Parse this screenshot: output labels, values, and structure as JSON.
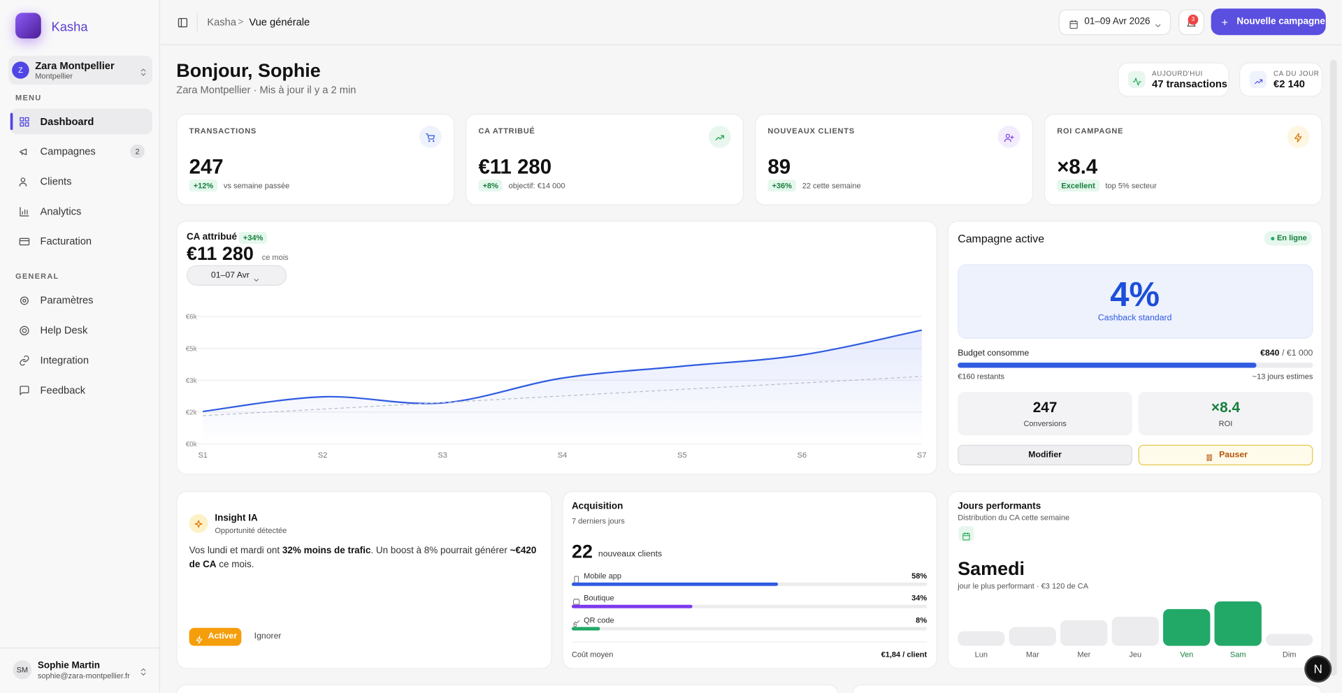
{
  "sidebar": {
    "brand": "Kasha",
    "workspace": {
      "avatar": "Z",
      "name": "Zara Montpellier",
      "city": "Montpellier"
    },
    "menu_title": "MENU",
    "menu": [
      {
        "label": "Dashboard"
      },
      {
        "label": "Campagnes",
        "badge": "2"
      },
      {
        "label": "Clients"
      },
      {
        "label": "Analytics"
      },
      {
        "label": "Facturation"
      }
    ],
    "general_title": "GENERAL",
    "general": [
      {
        "label": "Paramètres"
      },
      {
        "label": "Help Desk"
      },
      {
        "label": "Integration"
      },
      {
        "label": "Feedback"
      }
    ],
    "user": {
      "initials": "SM",
      "name": "Sophie Martin",
      "email": "sophie@zara-montpellier.fr"
    }
  },
  "header": {
    "breadcrumb": [
      "Kasha",
      "Vue générale"
    ],
    "separator": ">",
    "date_range": "01–09 Avr 2026",
    "notifications": "3",
    "cta": "Nouvelle campagne",
    "cta_icon": "+"
  },
  "greeting": {
    "title": "Bonjour, Sophie",
    "subtitle": "Zara Montpellier · Mis à jour il y a 2 min"
  },
  "quick_stats": [
    {
      "label": "AUJOURD'HUI",
      "value": "47 transactions"
    },
    {
      "label": "CA DU JOUR",
      "value": "€2 140"
    }
  ],
  "kpis": [
    {
      "label": "TRANSACTIONS",
      "value": "247",
      "delta": "+12%",
      "note": "vs semaine passée"
    },
    {
      "label": "CA ATTRIBUÉ",
      "value": "€11 280",
      "delta": "+8%",
      "note": "objectif: €14 000"
    },
    {
      "label": "NOUVEAUX CLIENTS",
      "value": "89",
      "delta": "+36%",
      "note": "22 cette semaine"
    },
    {
      "label": "ROI CAMPAGNE",
      "value": "×8.4",
      "delta": "Excellent",
      "note": "top 5% secteur"
    }
  ],
  "revenue_chart": {
    "type": "line",
    "title": "CA attribué",
    "delta": "+34%",
    "total": "€11 280",
    "period": "ce mois",
    "filter": "01–07 Avr",
    "categories": [
      "S1",
      "S2",
      "S3",
      "S4",
      "S5",
      "S6",
      "S7"
    ],
    "series": [
      {
        "color": "#2f5be0",
        "area": true,
        "values": [
          1530,
          2220,
          1930,
          3100,
          3660,
          4190,
          5360
        ]
      },
      {
        "color": "#b8bccb",
        "dashed": true,
        "values": [
          1330,
          1640,
          1950,
          2260,
          2570,
          2870,
          3180
        ]
      }
    ],
    "ylim": [
      0,
      6000
    ],
    "yticks": [
      {
        "value": 0,
        "label": "€0k"
      },
      {
        "value": 1500,
        "label": "€2k"
      },
      {
        "value": 3000,
        "label": "€3k"
      },
      {
        "value": 4500,
        "label": "€5k"
      },
      {
        "value": 6000,
        "label": "€6k"
      }
    ],
    "grid": true
  },
  "campaign": {
    "title": "Campagne active",
    "status": "En ligne",
    "rate": "4%",
    "rate_label": "Cashback standard",
    "budget": {
      "label": "Budget consomme",
      "spent": 840,
      "spent_label": "€840",
      "total": 1000,
      "total_label": "/ €1 000",
      "remaining": "€160 restants",
      "eta": "~13 jours estimes",
      "color": "#2f5be0"
    },
    "stats": [
      {
        "value": "247",
        "label": "Conversions"
      },
      {
        "value": "×8.4",
        "label": "ROI"
      }
    ],
    "actions": [
      "Modifier",
      "Pauser"
    ]
  },
  "insight": {
    "title": "Insight IA",
    "subtitle": "Opportunité détectée",
    "text": [
      {
        "text": "Vos lundi et mardi ont "
      },
      {
        "text": "32% moins de trafic",
        "bold": true
      },
      {
        "text": ". Un boost à 8% pourrait générer "
      },
      {
        "text": "~€420 de CA",
        "bold": true
      },
      {
        "text": " ce mois."
      }
    ],
    "actions": [
      "Activer",
      "Ignorer"
    ]
  },
  "acquisition": {
    "title": "Acquisition",
    "subtitle": "7 derniers jours",
    "count": "22",
    "count_label": "nouveaux clients",
    "channels": [
      {
        "name": "Mobile app",
        "value": 58,
        "label": "58%",
        "color": "#2f5be0"
      },
      {
        "name": "Boutique",
        "value": 34,
        "label": "34%",
        "color": "#7c3aed"
      },
      {
        "name": "QR code",
        "value": 8,
        "label": "8%",
        "color": "#22a867"
      }
    ],
    "footer_label": "Coût moyen",
    "footer_value": "€1,84 / client"
  },
  "best_days": {
    "title": "Jours performants",
    "subtitle": "Distribution du CA cette semaine",
    "best": "Samedi",
    "best_note": "jour le plus performant · €3 120 de CA",
    "categories": [
      "Lun",
      "Mar",
      "Mer",
      "Jeu",
      "Ven",
      "Sam",
      "Dim"
    ],
    "values": [
      1020,
      1320,
      1800,
      2040,
      2580,
      3120,
      840
    ],
    "colors": [
      "#ececee",
      "#ececee",
      "#ececee",
      "#ececee",
      "#22a867",
      "#22a867",
      "#ececee"
    ]
  },
  "dev_badge": "N"
}
